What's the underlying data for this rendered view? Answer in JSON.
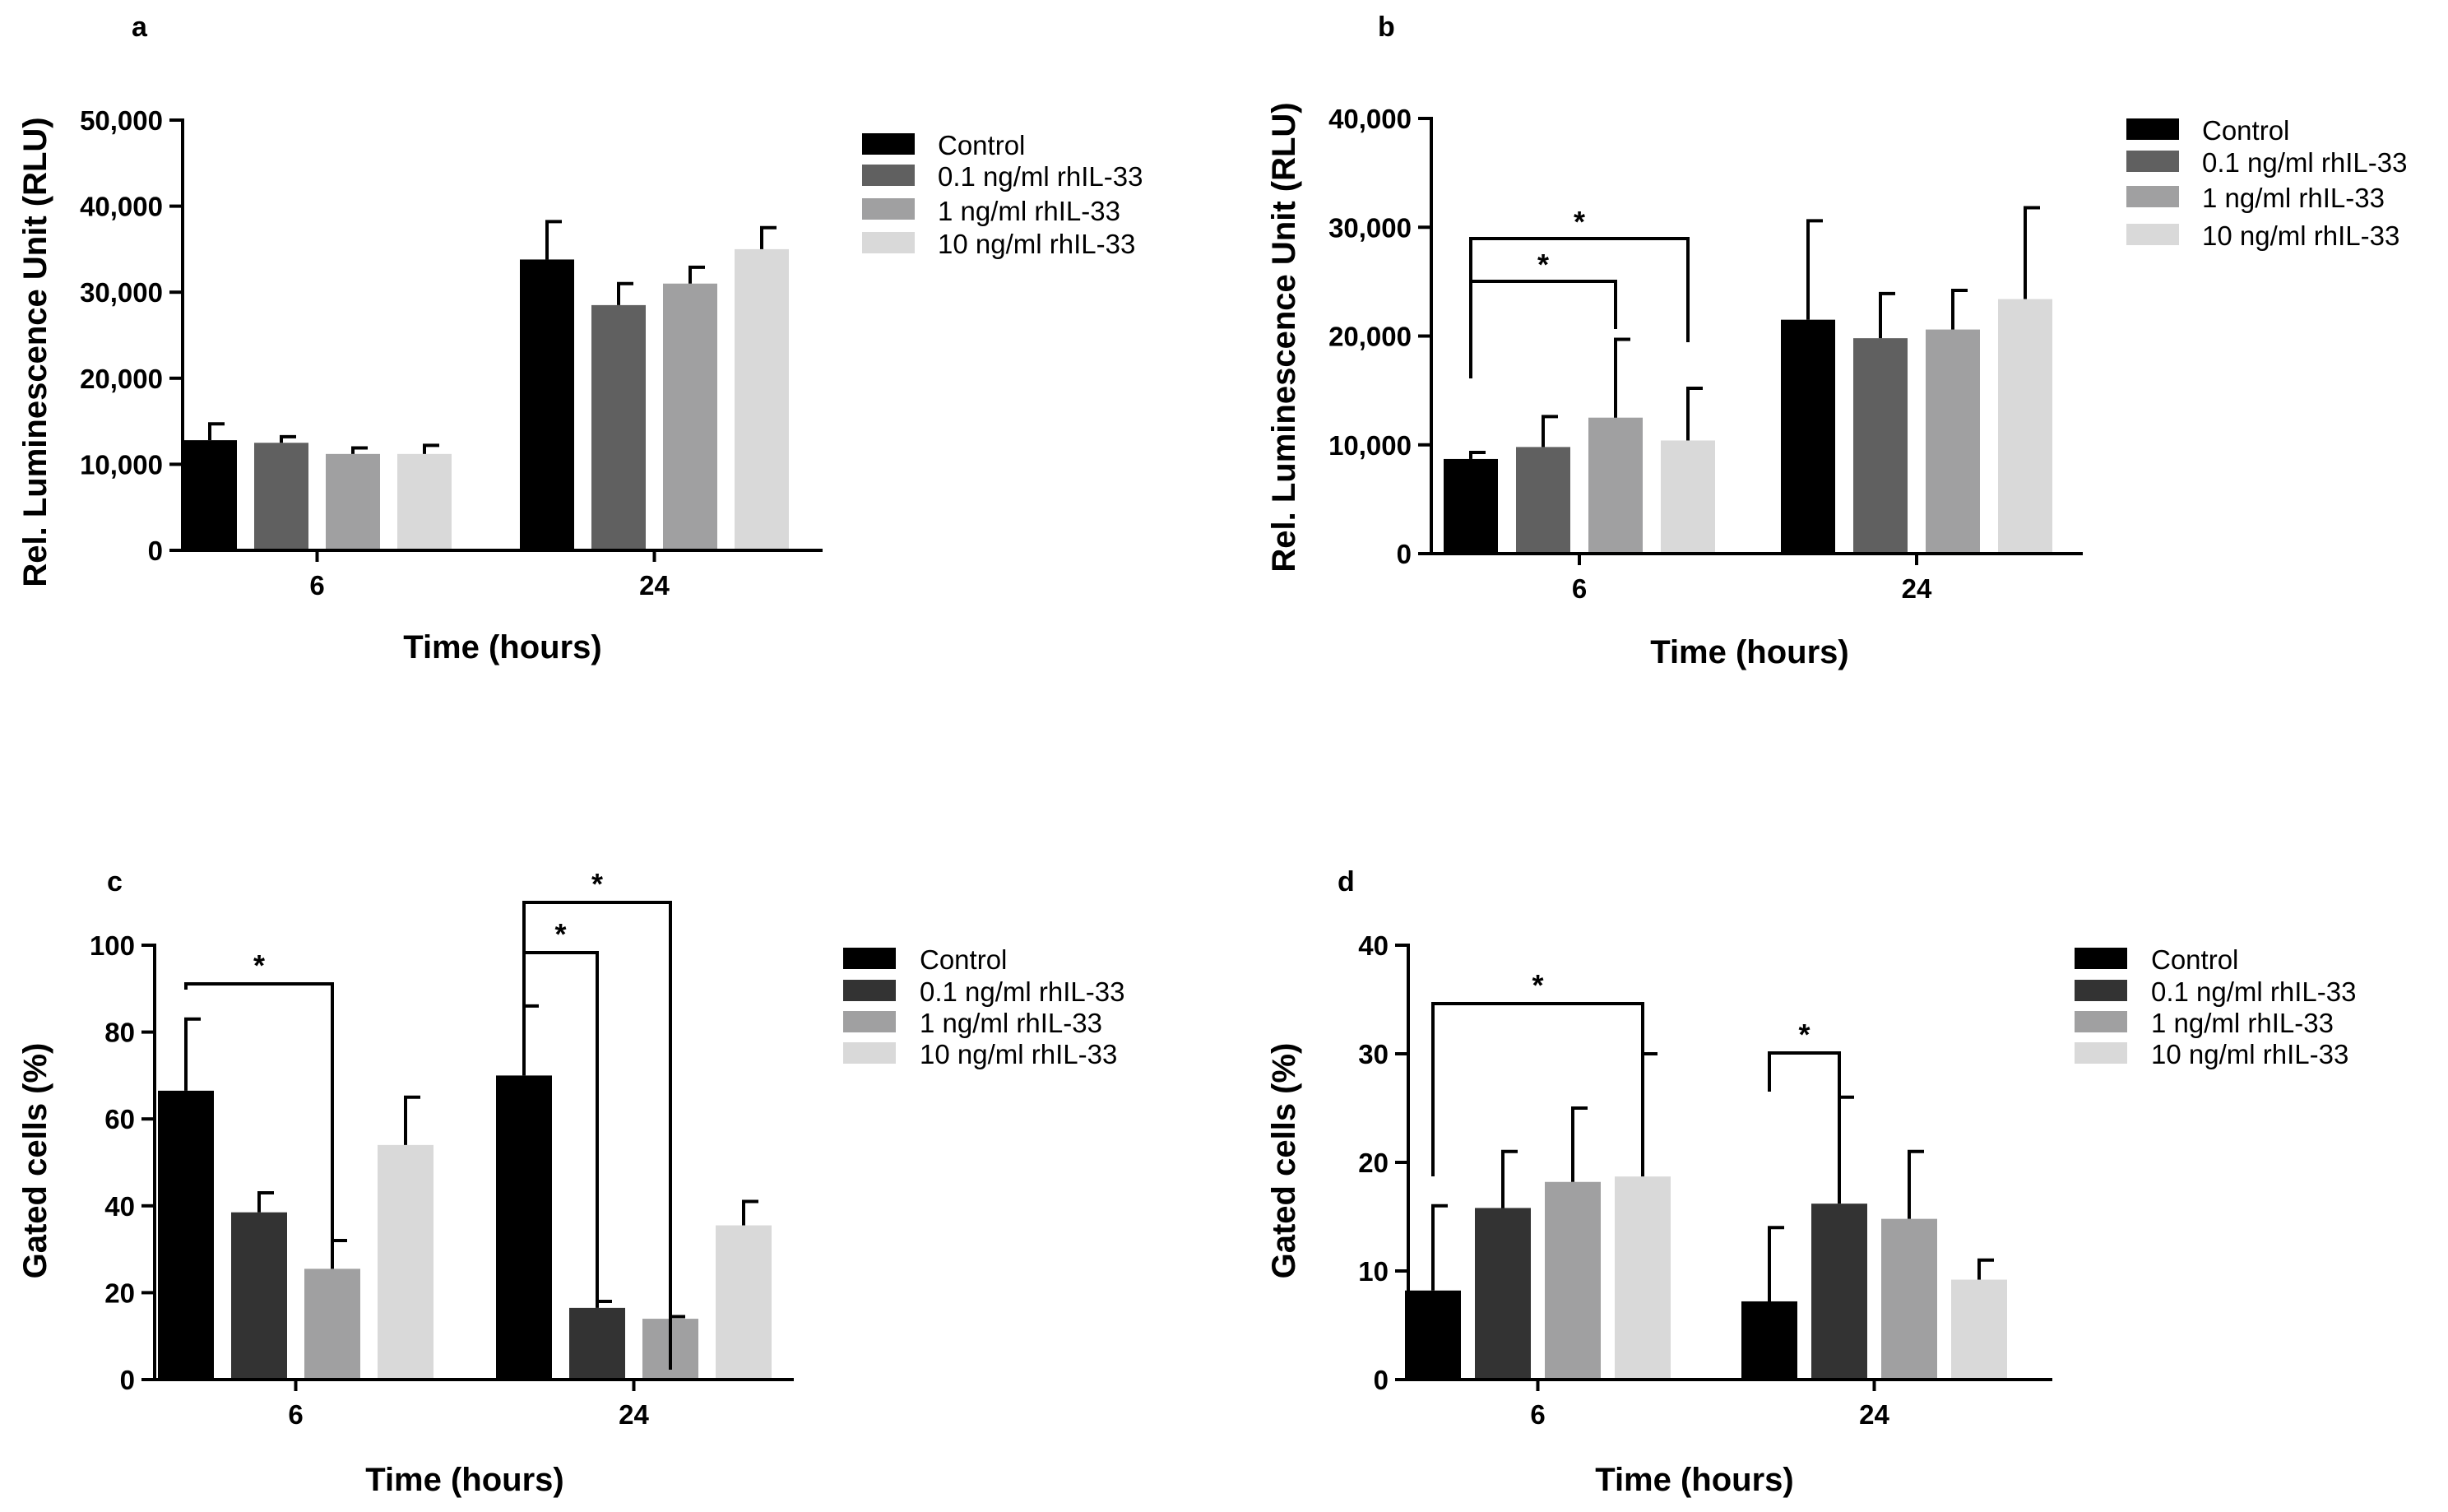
{
  "figure": {
    "legend_labels": [
      "Control",
      "0.1 ng/ml rhIL-33",
      "1 ng/ml rhIL-33",
      "10 ng/ml rhIL-33"
    ]
  },
  "chart_data": [
    {
      "panel": "a",
      "type": "bar",
      "categories": [
        "6",
        "24"
      ],
      "xlabel": "Time (hours)",
      "ylabel": "Rel. Luminescence Unit (RLU)",
      "ylim": [
        0,
        50000
      ],
      "yticks": [
        0,
        10000,
        20000,
        30000,
        40000,
        50000
      ],
      "ytick_labels": [
        "0",
        "10,000",
        "20,000",
        "30,000",
        "40,000",
        "50,000"
      ],
      "series": [
        {
          "name": "Control",
          "color": "#000000",
          "values": [
            12800,
            33800
          ],
          "errors": [
            1900,
            4400
          ]
        },
        {
          "name": "0.1 ng/ml rhIL-33",
          "color": "#606060",
          "values": [
            12500,
            28500
          ],
          "errors": [
            700,
            2500
          ]
        },
        {
          "name": "1 ng/ml rhIL-33",
          "color": "#a0a0a1",
          "values": [
            11200,
            31000
          ],
          "errors": [
            700,
            1900
          ]
        },
        {
          "name": "10 ng/ml rhIL-33",
          "color": "#d9d9d9",
          "values": [
            11200,
            35000
          ],
          "errors": [
            1000,
            2500
          ]
        }
      ],
      "significance": []
    },
    {
      "panel": "b",
      "type": "bar",
      "categories": [
        "6",
        "24"
      ],
      "xlabel": "Time (hours)",
      "ylabel": "Rel. Luminescence Unit (RLU)",
      "ylim": [
        0,
        40000
      ],
      "yticks": [
        0,
        10000,
        20000,
        30000,
        40000
      ],
      "ytick_labels": [
        "0",
        "10,000",
        "20,000",
        "30,000",
        "40,000"
      ],
      "series": [
        {
          "name": "Control",
          "color": "#000000",
          "values": [
            8700,
            21500
          ],
          "errors": [
            600,
            9100
          ]
        },
        {
          "name": "0.1 ng/ml rhIL-33",
          "color": "#606060",
          "values": [
            9800,
            19800
          ],
          "errors": [
            2800,
            4100
          ]
        },
        {
          "name": "1 ng/ml rhIL-33",
          "color": "#a0a0a1",
          "values": [
            12500,
            20600
          ],
          "errors": [
            7200,
            3600
          ]
        },
        {
          "name": "10 ng/ml rhIL-33",
          "color": "#d9d9d9",
          "values": [
            10400,
            23400
          ],
          "errors": [
            4800,
            8400
          ]
        }
      ],
      "significance": [
        {
          "group": 0,
          "from": 0,
          "to": 2,
          "level": 0,
          "label": "*"
        },
        {
          "group": 0,
          "from": 0,
          "to": 3,
          "level": 1,
          "label": "*"
        }
      ]
    },
    {
      "panel": "c",
      "type": "bar",
      "categories": [
        "6",
        "24"
      ],
      "xlabel": "Time (hours)",
      "ylabel": "Gated cells (%)",
      "ylim": [
        0,
        100
      ],
      "yticks": [
        0,
        20,
        40,
        60,
        80,
        100
      ],
      "ytick_labels": [
        "0",
        "20",
        "40",
        "60",
        "80",
        "100"
      ],
      "series": [
        {
          "name": "Control",
          "color": "#000000",
          "values": [
            66.5,
            70
          ],
          "errors": [
            16.5,
            16
          ]
        },
        {
          "name": "0.1 ng/ml rhIL-33",
          "color": "#333333",
          "values": [
            38.5,
            16.5
          ],
          "errors": [
            4.5,
            1.5
          ]
        },
        {
          "name": "1 ng/ml rhIL-33",
          "color": "#a0a0a1",
          "values": [
            25.5,
            14
          ],
          "errors": [
            6.5,
            0.5
          ]
        },
        {
          "name": "10 ng/ml rhIL-33",
          "color": "#d9d9d9",
          "values": [
            54,
            35.5
          ],
          "errors": [
            11,
            5.5
          ]
        }
      ],
      "significance": [
        {
          "group": 0,
          "from": 0,
          "to": 2,
          "level": 0,
          "label": "*"
        },
        {
          "group": 1,
          "from": 0,
          "to": 1,
          "level": 0,
          "label": "*"
        },
        {
          "group": 1,
          "from": 0,
          "to": 2,
          "level": 1,
          "label": "*"
        }
      ]
    },
    {
      "panel": "d",
      "type": "bar",
      "categories": [
        "6",
        "24"
      ],
      "xlabel": "Time (hours)",
      "ylabel": "Gated cells (%)",
      "ylim": [
        0,
        40
      ],
      "yticks": [
        0,
        10,
        20,
        30,
        40
      ],
      "ytick_labels": [
        "0",
        "10",
        "20",
        "30",
        "40"
      ],
      "series": [
        {
          "name": "Control",
          "color": "#000000",
          "values": [
            8.2,
            7.2
          ],
          "errors": [
            7.8,
            6.8
          ]
        },
        {
          "name": "0.1 ng/ml rhIL-33",
          "color": "#333333",
          "values": [
            15.8,
            16.2
          ],
          "errors": [
            5.2,
            9.8
          ]
        },
        {
          "name": "1 ng/ml rhIL-33",
          "color": "#a0a0a1",
          "values": [
            18.2,
            14.8
          ],
          "errors": [
            6.8,
            6.2
          ]
        },
        {
          "name": "10 ng/ml rhIL-33",
          "color": "#d9d9d9",
          "values": [
            18.7,
            9.2
          ],
          "errors": [
            11.3,
            1.8
          ]
        }
      ],
      "significance": [
        {
          "group": 0,
          "from": 0,
          "to": 3,
          "level": 0,
          "label": "*"
        },
        {
          "group": 1,
          "from": 0,
          "to": 1,
          "level": 0,
          "label": "*"
        }
      ]
    }
  ]
}
